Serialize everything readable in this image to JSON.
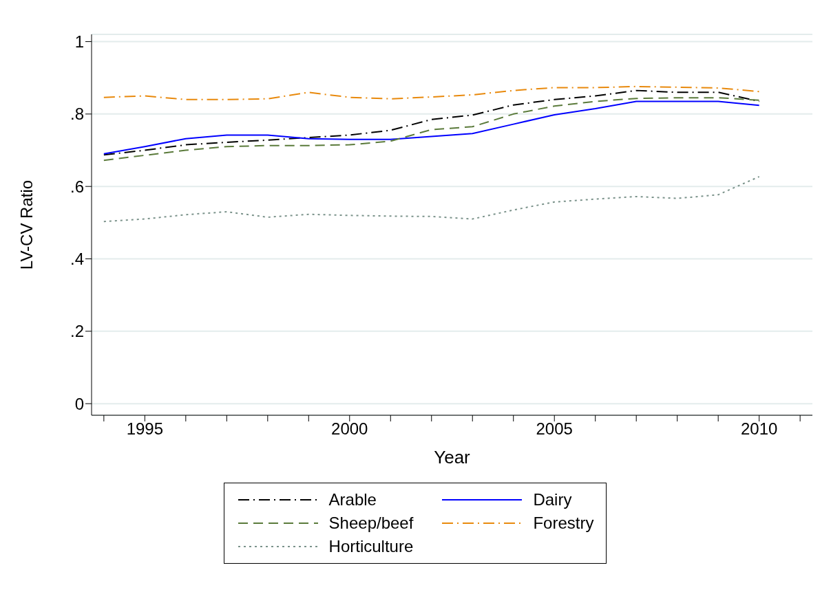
{
  "chart_data": {
    "type": "line",
    "xlabel": "Year",
    "ylabel": "LV-CV Ratio",
    "x": [
      1994,
      1995,
      1996,
      1997,
      1998,
      1999,
      2000,
      2001,
      2002,
      2003,
      2004,
      2005,
      2006,
      2007,
      2008,
      2009,
      2010
    ],
    "series": [
      {
        "name": "Arable",
        "color": "#000000",
        "line_style": "dashdot",
        "values": [
          0.687,
          0.7,
          0.715,
          0.722,
          0.728,
          0.735,
          0.742,
          0.755,
          0.785,
          0.797,
          0.825,
          0.84,
          0.85,
          0.865,
          0.86,
          0.86,
          0.835
        ]
      },
      {
        "name": "Dairy",
        "color": "#0000ff",
        "line_style": "solid",
        "values": [
          0.69,
          0.71,
          0.732,
          0.742,
          0.742,
          0.732,
          0.73,
          0.73,
          0.738,
          0.746,
          0.772,
          0.798,
          0.815,
          0.835,
          0.835,
          0.835,
          0.824
        ]
      },
      {
        "name": "Sheep/beef",
        "color": "#5a7a3a",
        "line_style": "dashed",
        "values": [
          0.672,
          0.686,
          0.7,
          0.71,
          0.713,
          0.713,
          0.715,
          0.725,
          0.757,
          0.765,
          0.8,
          0.822,
          0.835,
          0.843,
          0.845,
          0.845,
          0.838
        ]
      },
      {
        "name": "Forestry",
        "color": "#e8890c",
        "line_style": "dashdot",
        "values": [
          0.846,
          0.85,
          0.84,
          0.84,
          0.842,
          0.86,
          0.846,
          0.842,
          0.847,
          0.853,
          0.865,
          0.873,
          0.873,
          0.876,
          0.874,
          0.872,
          0.862
        ]
      },
      {
        "name": "Horticulture",
        "color": "#7a928a",
        "line_style": "dotted",
        "values": [
          0.503,
          0.51,
          0.522,
          0.53,
          0.515,
          0.523,
          0.52,
          0.518,
          0.517,
          0.51,
          0.535,
          0.557,
          0.565,
          0.572,
          0.567,
          0.577,
          0.627
        ]
      }
    ],
    "xlim": [
      1993.7,
      2011.3
    ],
    "xticks": [
      {
        "value": 1994,
        "label": null
      },
      1995,
      {
        "value": 1996,
        "label": null
      },
      {
        "value": 1997,
        "label": null
      },
      {
        "value": 1998,
        "label": null
      },
      {
        "value": 1999,
        "label": null
      },
      2000,
      {
        "value": 2001,
        "label": null
      },
      {
        "value": 2002,
        "label": null
      },
      {
        "value": 2003,
        "label": null
      },
      {
        "value": 2004,
        "label": null
      },
      2005,
      {
        "value": 2006,
        "label": null
      },
      {
        "value": 2007,
        "label": null
      },
      {
        "value": 2008,
        "label": null
      },
      {
        "value": 2009,
        "label": null
      },
      2010,
      {
        "value": 2011,
        "label": null
      }
    ],
    "ylim": [
      -0.032,
      1.02
    ],
    "yticks": [
      0,
      {
        "value": 0.2,
        "label": ".2"
      },
      {
        "value": 0.4,
        "label": ".4"
      },
      {
        "value": 0.6,
        "label": ".6"
      },
      {
        "value": 0.8,
        "label": ".8"
      },
      1
    ],
    "grid": "y",
    "legend": "bottom",
    "marker": "none"
  }
}
